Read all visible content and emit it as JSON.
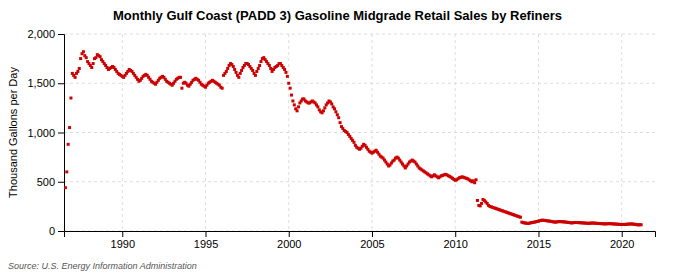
{
  "chart_data": {
    "type": "scatter",
    "title": "Monthly Gulf Coast (PADD 3) Gasoline Midgrade Retail Sales by Refiners",
    "ylabel": "Thousand Gallons per Day",
    "annotations": [
      "Source: U.S. Energy Information Administration"
    ],
    "color": "#CC0000",
    "marker": "square",
    "grid": true,
    "xlim": [
      1986.5,
      2022
    ],
    "xticks": [
      1990,
      1995,
      2000,
      2005,
      2010,
      2015,
      2020
    ],
    "ylim": [
      0,
      2000
    ],
    "yticks": [
      0,
      500,
      {
        "value": 1000,
        "label": "1,000"
      },
      {
        "value": 1500,
        "label": "1,500"
      },
      {
        "value": 2000,
        "label": "2,000"
      }
    ],
    "x": [
      1986.583,
      1986.667,
      1986.75,
      1986.833,
      1986.917,
      1987.0,
      1987.083,
      1987.167,
      1987.25,
      1987.333,
      1987.417,
      1987.5,
      1987.583,
      1987.667,
      1987.75,
      1987.833,
      1987.917,
      1988.0,
      1988.083,
      1988.167,
      1988.25,
      1988.333,
      1988.417,
      1988.5,
      1988.583,
      1988.667,
      1988.75,
      1988.833,
      1988.917,
      1989.0,
      1989.083,
      1989.167,
      1989.25,
      1989.333,
      1989.417,
      1989.5,
      1989.583,
      1989.667,
      1989.75,
      1989.833,
      1989.917,
      1990.0,
      1990.083,
      1990.167,
      1990.25,
      1990.333,
      1990.417,
      1990.5,
      1990.583,
      1990.667,
      1990.75,
      1990.833,
      1990.917,
      1991.0,
      1991.083,
      1991.167,
      1991.25,
      1991.333,
      1991.417,
      1991.5,
      1991.583,
      1991.667,
      1991.75,
      1991.833,
      1991.917,
      1992.0,
      1992.083,
      1992.167,
      1992.25,
      1992.333,
      1992.417,
      1992.5,
      1992.583,
      1992.667,
      1992.75,
      1992.833,
      1992.917,
      1993.0,
      1993.083,
      1993.167,
      1993.25,
      1993.333,
      1993.417,
      1993.5,
      1993.583,
      1993.667,
      1993.75,
      1993.833,
      1993.917,
      1994.0,
      1994.083,
      1994.167,
      1994.25,
      1994.333,
      1994.417,
      1994.5,
      1994.583,
      1994.667,
      1994.75,
      1994.833,
      1994.917,
      1995.0,
      1995.083,
      1995.167,
      1995.25,
      1995.333,
      1995.417,
      1995.5,
      1995.583,
      1995.667,
      1995.75,
      1995.833,
      1995.917,
      1996.0,
      1996.083,
      1996.167,
      1996.25,
      1996.333,
      1996.417,
      1996.5,
      1996.583,
      1996.667,
      1996.75,
      1996.833,
      1996.917,
      1997.0,
      1997.083,
      1997.167,
      1997.25,
      1997.333,
      1997.417,
      1997.5,
      1997.583,
      1997.667,
      1997.75,
      1997.833,
      1997.917,
      1998.0,
      1998.083,
      1998.167,
      1998.25,
      1998.333,
      1998.417,
      1998.5,
      1998.583,
      1998.667,
      1998.75,
      1998.833,
      1998.917,
      1999.0,
      1999.083,
      1999.167,
      1999.25,
      1999.333,
      1999.417,
      1999.5,
      1999.583,
      1999.667,
      1999.75,
      1999.833,
      1999.917,
      2000.0,
      2000.083,
      2000.167,
      2000.25,
      2000.333,
      2000.417,
      2000.5,
      2000.583,
      2000.667,
      2000.75,
      2000.833,
      2000.917,
      2001.0,
      2001.083,
      2001.167,
      2001.25,
      2001.333,
      2001.417,
      2001.5,
      2001.583,
      2001.667,
      2001.75,
      2001.833,
      2001.917,
      2002.0,
      2002.083,
      2002.167,
      2002.25,
      2002.333,
      2002.417,
      2002.5,
      2002.583,
      2002.667,
      2002.75,
      2002.833,
      2002.917,
      2003.0,
      2003.083,
      2003.167,
      2003.25,
      2003.333,
      2003.417,
      2003.5,
      2003.583,
      2003.667,
      2003.75,
      2003.833,
      2003.917,
      2004.0,
      2004.083,
      2004.167,
      2004.25,
      2004.333,
      2004.417,
      2004.5,
      2004.583,
      2004.667,
      2004.75,
      2004.833,
      2004.917,
      2005.0,
      2005.083,
      2005.167,
      2005.25,
      2005.333,
      2005.417,
      2005.5,
      2005.583,
      2005.667,
      2005.75,
      2005.833,
      2005.917,
      2006.0,
      2006.083,
      2006.167,
      2006.25,
      2006.333,
      2006.417,
      2006.5,
      2006.583,
      2006.667,
      2006.75,
      2006.833,
      2006.917,
      2007.0,
      2007.083,
      2007.167,
      2007.25,
      2007.333,
      2007.417,
      2007.5,
      2007.583,
      2007.667,
      2007.75,
      2007.833,
      2007.917,
      2008.0,
      2008.083,
      2008.167,
      2008.25,
      2008.333,
      2008.417,
      2008.5,
      2008.583,
      2008.667,
      2008.75,
      2008.833,
      2008.917,
      2009.0,
      2009.083,
      2009.167,
      2009.25,
      2009.333,
      2009.417,
      2009.5,
      2009.583,
      2009.667,
      2009.75,
      2009.833,
      2009.917,
      2010.0,
      2010.083,
      2010.167,
      2010.25,
      2010.333,
      2010.417,
      2010.5,
      2010.583,
      2010.667,
      2010.75,
      2010.833,
      2010.917,
      2011.0,
      2011.083,
      2011.167,
      2011.25,
      2011.333,
      2011.417,
      2011.5,
      2011.583,
      2011.667,
      2011.75,
      2011.833,
      2011.917,
      2012.0,
      2012.083,
      2012.167,
      2012.25,
      2012.333,
      2012.417,
      2012.5,
      2012.583,
      2012.667,
      2012.75,
      2012.833,
      2012.917,
      2013.0,
      2013.083,
      2013.167,
      2013.25,
      2013.333,
      2013.417,
      2013.5,
      2013.583,
      2013.667,
      2013.75,
      2013.833,
      2013.917,
      2014.0,
      2014.083,
      2014.167,
      2014.25,
      2014.333,
      2014.417,
      2014.5,
      2014.583,
      2014.667,
      2014.75,
      2014.833,
      2014.917,
      2015.0,
      2015.083,
      2015.167,
      2015.25,
      2015.333,
      2015.417,
      2015.5,
      2015.583,
      2015.667,
      2015.75,
      2015.833,
      2015.917,
      2016.0,
      2016.083,
      2016.167,
      2016.25,
      2016.333,
      2016.417,
      2016.5,
      2016.583,
      2016.667,
      2016.75,
      2016.833,
      2016.917,
      2017.0,
      2017.083,
      2017.167,
      2017.25,
      2017.333,
      2017.417,
      2017.5,
      2017.583,
      2017.667,
      2017.75,
      2017.833,
      2017.917,
      2018.0,
      2018.083,
      2018.167,
      2018.25,
      2018.333,
      2018.417,
      2018.5,
      2018.583,
      2018.667,
      2018.75,
      2018.833,
      2018.917,
      2019.0,
      2019.083,
      2019.167,
      2019.25,
      2019.333,
      2019.417,
      2019.5,
      2019.583,
      2019.667,
      2019.75,
      2019.833,
      2019.917,
      2020.0,
      2020.083,
      2020.167,
      2020.25,
      2020.333,
      2020.417,
      2020.5,
      2020.583,
      2020.667,
      2020.75,
      2020.833,
      2020.917,
      2021.0,
      2021.083,
      2021.167
    ],
    "values": [
      440,
      600,
      880,
      1050,
      1350,
      1600,
      1580,
      1560,
      1600,
      1620,
      1650,
      1750,
      1800,
      1820,
      1780,
      1760,
      1720,
      1700,
      1680,
      1660,
      1700,
      1750,
      1760,
      1790,
      1780,
      1770,
      1740,
      1720,
      1700,
      1680,
      1660,
      1640,
      1650,
      1660,
      1670,
      1660,
      1640,
      1620,
      1600,
      1590,
      1580,
      1570,
      1560,
      1580,
      1600,
      1620,
      1640,
      1630,
      1620,
      1600,
      1580,
      1560,
      1540,
      1520,
      1530,
      1550,
      1570,
      1580,
      1590,
      1580,
      1560,
      1540,
      1520,
      1510,
      1500,
      1490,
      1510,
      1530,
      1550,
      1560,
      1570,
      1560,
      1540,
      1520,
      1510,
      1500,
      1490,
      1480,
      1500,
      1520,
      1540,
      1550,
      1560,
      1560,
      1450,
      1500,
      1510,
      1500,
      1480,
      1470,
      1490,
      1510,
      1530,
      1540,
      1550,
      1540,
      1530,
      1510,
      1490,
      1480,
      1470,
      1460,
      1480,
      1500,
      1510,
      1520,
      1530,
      1520,
      1510,
      1500,
      1490,
      1480,
      1460,
      1450,
      1580,
      1600,
      1620,
      1650,
      1680,
      1700,
      1690,
      1670,
      1640,
      1610,
      1580,
      1560,
      1600,
      1630,
      1660,
      1680,
      1700,
      1700,
      1690,
      1670,
      1650,
      1630,
      1600,
      1580,
      1620,
      1650,
      1680,
      1720,
      1750,
      1760,
      1740,
      1720,
      1700,
      1680,
      1650,
      1620,
      1640,
      1660,
      1670,
      1680,
      1700,
      1700,
      1680,
      1660,
      1640,
      1610,
      1570,
      1500,
      1450,
      1380,
      1320,
      1280,
      1240,
      1220,
      1260,
      1300,
      1320,
      1340,
      1340,
      1320,
      1310,
      1300,
      1300,
      1310,
      1320,
      1310,
      1300,
      1280,
      1260,
      1230,
      1210,
      1200,
      1220,
      1250,
      1280,
      1300,
      1320,
      1310,
      1290,
      1260,
      1240,
      1210,
      1180,
      1150,
      1100,
      1060,
      1040,
      1020,
      1010,
      1000,
      980,
      960,
      940,
      920,
      900,
      870,
      850,
      840,
      830,
      840,
      860,
      880,
      870,
      850,
      830,
      810,
      800,
      790,
      800,
      810,
      820,
      800,
      780,
      760,
      750,
      740,
      720,
      700,
      680,
      660,
      670,
      690,
      710,
      720,
      740,
      750,
      740,
      720,
      700,
      680,
      660,
      640,
      660,
      680,
      700,
      710,
      720,
      710,
      700,
      680,
      660,
      640,
      630,
      620,
      610,
      600,
      590,
      580,
      570,
      560,
      550,
      560,
      570,
      560,
      550,
      540,
      550,
      560,
      565,
      570,
      575,
      570,
      560,
      555,
      545,
      535,
      525,
      515,
      520,
      530,
      540,
      545,
      550,
      545,
      540,
      535,
      530,
      520,
      510,
      500,
      510,
      490,
      520,
      310,
      260,
      255,
      280,
      320,
      310,
      295,
      280,
      260,
      250,
      245,
      240,
      235,
      230,
      225,
      220,
      215,
      210,
      205,
      200,
      195,
      190,
      185,
      180,
      175,
      170,
      165,
      160,
      155,
      150,
      145,
      140,
      90,
      85,
      82,
      80,
      78,
      77,
      82,
      85,
      88,
      90,
      93,
      96,
      100,
      105,
      108,
      110,
      108,
      106,
      104,
      102,
      100,
      98,
      95,
      92,
      90,
      92,
      94,
      96,
      95,
      94,
      93,
      92,
      90,
      88,
      86,
      84,
      82,
      84,
      86,
      87,
      86,
      85,
      84,
      83,
      82,
      81,
      80,
      79,
      78,
      79,
      80,
      81,
      80,
      79,
      78,
      77,
      76,
      75,
      74,
      73,
      72,
      73,
      74,
      75,
      74,
      73,
      72,
      71,
      70,
      69,
      68,
      67,
      66,
      67,
      66,
      68,
      69,
      70,
      71,
      72,
      70,
      69,
      67,
      64,
      62,
      64,
      63
    ]
  }
}
